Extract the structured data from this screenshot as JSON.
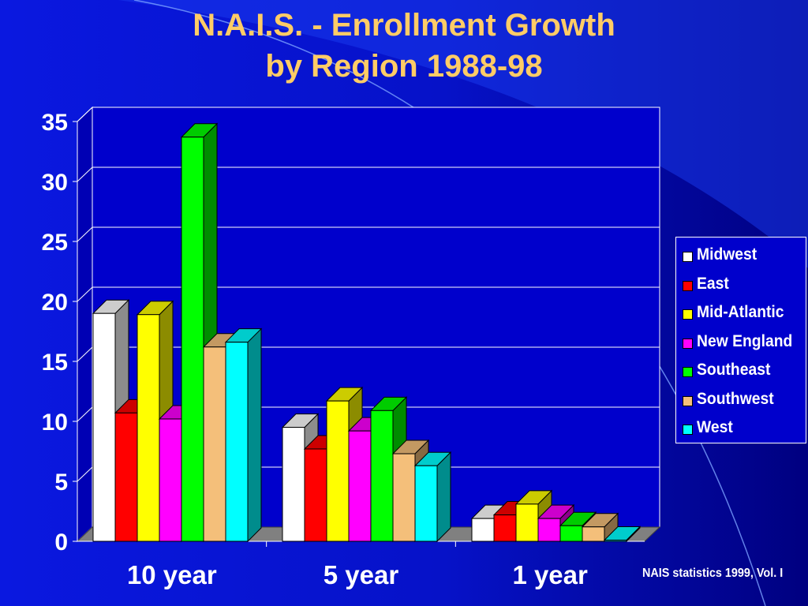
{
  "title_line1": "N.A.I.S. - Enrollment Growth",
  "title_line2": "by Region 1988-98",
  "source": "NAIS statistics 1999, Vol. I",
  "chart_data": {
    "type": "bar",
    "title": "N.A.I.S. - Enrollment Growth by Region 1988-98",
    "categories": [
      "10 year",
      "5 year",
      "1 year"
    ],
    "ylim": [
      0,
      35
    ],
    "yticks": [
      0,
      5,
      10,
      15,
      20,
      25,
      30,
      35
    ],
    "grid": true,
    "legend_position": "right",
    "series": [
      {
        "name": "Midwest",
        "color": "#ffffff",
        "values": [
          19,
          9.5,
          1.9
        ]
      },
      {
        "name": "East",
        "color": "#ff0000",
        "values": [
          10.7,
          7.7,
          2.2
        ]
      },
      {
        "name": "Mid-Atlantic",
        "color": "#ffff00",
        "values": [
          18.9,
          11.7,
          3.1
        ]
      },
      {
        "name": "New England",
        "color": "#ff00ff",
        "values": [
          10.2,
          9.2,
          1.9
        ]
      },
      {
        "name": "Southeast",
        "color": "#00ff00",
        "values": [
          33.7,
          10.9,
          1.3
        ]
      },
      {
        "name": "Southwest",
        "color": "#f4bf7a",
        "values": [
          16.2,
          7.3,
          1.2
        ]
      },
      {
        "name": "West",
        "color": "#00ffff",
        "values": [
          16.6,
          6.3,
          0.1
        ]
      }
    ]
  }
}
